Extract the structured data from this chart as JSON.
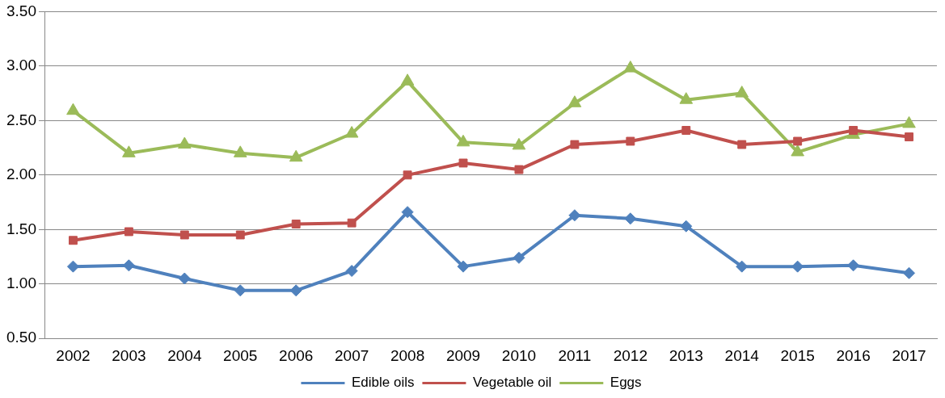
{
  "chart_data": {
    "type": "line",
    "categories": [
      "2002",
      "2003",
      "2004",
      "2005",
      "2006",
      "2007",
      "2008",
      "2009",
      "2010",
      "2011",
      "2012",
      "2013",
      "2014",
      "2015",
      "2016",
      "2017"
    ],
    "series": [
      {
        "name": "Edible oils",
        "color": "#4f81bd",
        "marker": "diamond",
        "values": [
          1.16,
          1.17,
          1.05,
          0.94,
          0.94,
          1.12,
          1.66,
          1.16,
          1.24,
          1.63,
          1.6,
          1.53,
          1.16,
          1.16,
          1.17,
          1.1
        ]
      },
      {
        "name": "Vegetable oil",
        "color": "#c0504d",
        "marker": "square",
        "values": [
          1.4,
          1.48,
          1.45,
          1.45,
          1.55,
          1.56,
          2.0,
          2.11,
          2.05,
          2.28,
          2.31,
          2.41,
          2.28,
          2.31,
          2.41,
          2.35
        ]
      },
      {
        "name": "Eggs",
        "color": "#9bbb59",
        "marker": "triangle",
        "values": [
          2.59,
          2.2,
          2.28,
          2.2,
          2.16,
          2.38,
          2.86,
          2.3,
          2.27,
          2.66,
          2.98,
          2.69,
          2.75,
          2.21,
          2.37,
          2.47
        ]
      }
    ],
    "ylim": [
      0.5,
      3.5
    ],
    "yticks": [
      {
        "value": 0.5,
        "label": "0.50"
      },
      {
        "value": 1,
        "label": "1.00"
      },
      {
        "value": 1.5,
        "label": "1.50"
      },
      {
        "value": 2,
        "label": "2.00"
      },
      {
        "value": 2.5,
        "label": "2.50"
      },
      {
        "value": 3,
        "label": "3.00"
      },
      {
        "value": 3.5,
        "label": "3.50"
      }
    ],
    "grid": "y",
    "legend": "bottom"
  }
}
